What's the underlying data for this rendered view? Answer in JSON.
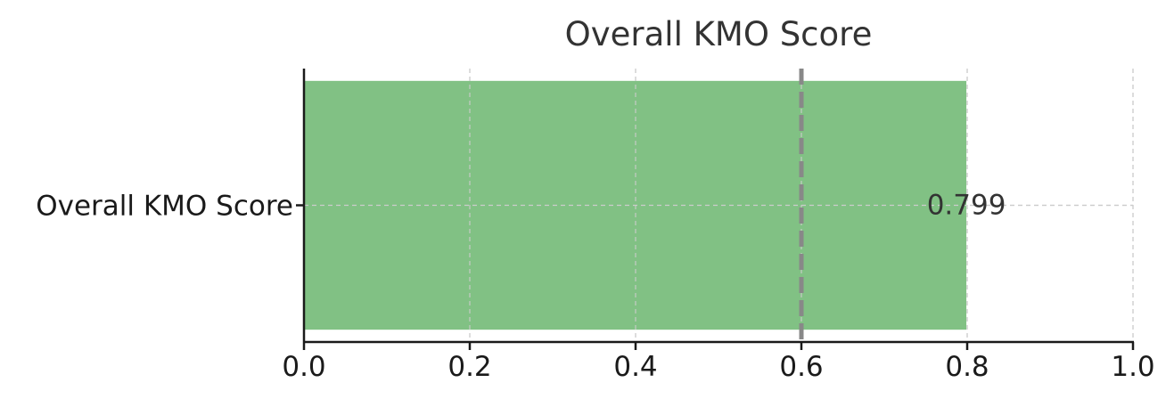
{
  "chart_data": {
    "type": "bar",
    "orientation": "horizontal",
    "title": "Overall KMO Score",
    "xlabel": "",
    "ylabel": "",
    "categories": [
      "Overall KMO Score"
    ],
    "values": [
      0.799
    ],
    "value_labels": [
      "0.799"
    ],
    "xlim": [
      0.0,
      1.0
    ],
    "xticks": [
      0.0,
      0.2,
      0.4,
      0.6,
      0.8,
      1.0
    ],
    "xtick_labels": [
      "0.0",
      "0.2",
      "0.4",
      "0.6",
      "0.8",
      "1.0"
    ],
    "reference_line": {
      "value": 0.6,
      "style": "dashed",
      "color": "#888888"
    },
    "grid": true,
    "bar_color": "#81c184",
    "axis_color": "#1a1a1a",
    "grid_color": "#cccccc"
  }
}
